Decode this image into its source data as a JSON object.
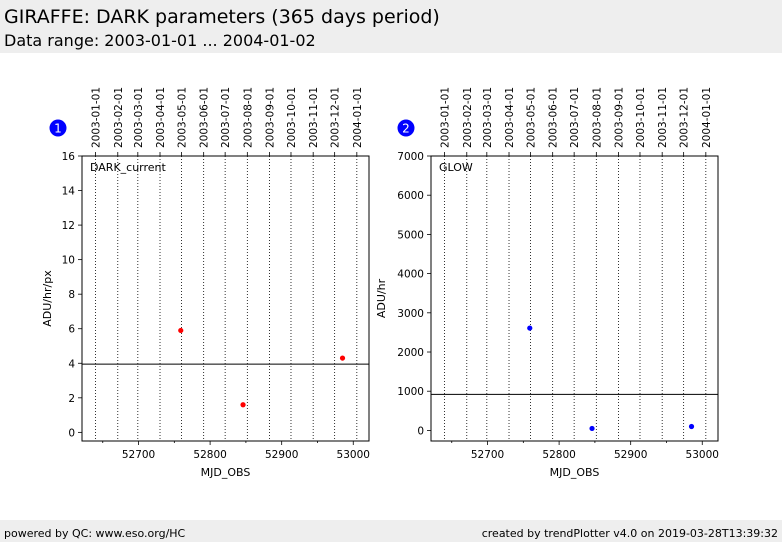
{
  "header": {
    "title": "GIRAFFE: DARK parameters (365 days period)",
    "subtitle": "Data range: 2003-01-01 ... 2004-01-02"
  },
  "footer": {
    "left": "powered by QC: www.eso.org/HC",
    "right": "created by trendPlotter v4.0 on 2019-03-28T13:39:32"
  },
  "colors": {
    "band": "#eeeeee",
    "marker_1": "#ff0000",
    "marker_2": "#0000ff",
    "badge": "#0000ff"
  },
  "chart_data": [
    {
      "type": "scatter",
      "badge": "1",
      "label": "DARK_current",
      "xlabel": "MJD_OBS",
      "ylabel": "ADU/hr/px",
      "xlim": [
        52621,
        53022
      ],
      "ylim": [
        -0.5,
        16
      ],
      "xticks": [
        52700,
        52800,
        52900,
        53000
      ],
      "yticks": [
        0,
        2,
        4,
        6,
        8,
        10,
        12,
        14,
        16
      ],
      "reference_line": 3.95,
      "grid": "vertical dotted at month starts",
      "top_axis": {
        "labels": [
          "2003-01-01",
          "2003-02-01",
          "2003-03-01",
          "2003-04-01",
          "2003-05-01",
          "2003-06-01",
          "2003-07-01",
          "2003-08-01",
          "2003-09-01",
          "2003-10-01",
          "2003-11-01",
          "2003-12-01",
          "2004-01-01"
        ],
        "mjd": [
          52640,
          52671,
          52699,
          52730,
          52760,
          52791,
          52821,
          52852,
          52883,
          52913,
          52944,
          52974,
          53005
        ]
      },
      "points": [
        {
          "x": 52759,
          "y": 5.9
        },
        {
          "x": 52846,
          "y": 1.6
        },
        {
          "x": 52985,
          "y": 4.3
        }
      ],
      "color": "#ff0000"
    },
    {
      "type": "scatter",
      "badge": "2",
      "label": "GLOW",
      "xlabel": "MJD_OBS",
      "ylabel": "ADU/hr",
      "xlim": [
        52621,
        53022
      ],
      "ylim": [
        -270,
        7000
      ],
      "xticks": [
        52700,
        52800,
        52900,
        53000
      ],
      "yticks": [
        0,
        1000,
        2000,
        3000,
        4000,
        5000,
        6000,
        7000
      ],
      "reference_line": 920,
      "grid": "vertical dotted at month starts",
      "top_axis": {
        "labels": [
          "2003-01-01",
          "2003-02-01",
          "2003-03-01",
          "2003-04-01",
          "2003-05-01",
          "2003-06-01",
          "2003-07-01",
          "2003-08-01",
          "2003-09-01",
          "2003-10-01",
          "2003-11-01",
          "2003-12-01",
          "2004-01-01"
        ],
        "mjd": [
          52640,
          52671,
          52699,
          52730,
          52760,
          52791,
          52821,
          52852,
          52883,
          52913,
          52944,
          52974,
          53005
        ]
      },
      "points": [
        {
          "x": 52759,
          "y": 2610
        },
        {
          "x": 52846,
          "y": 50
        },
        {
          "x": 52985,
          "y": 100
        }
      ],
      "color": "#0000ff"
    }
  ]
}
